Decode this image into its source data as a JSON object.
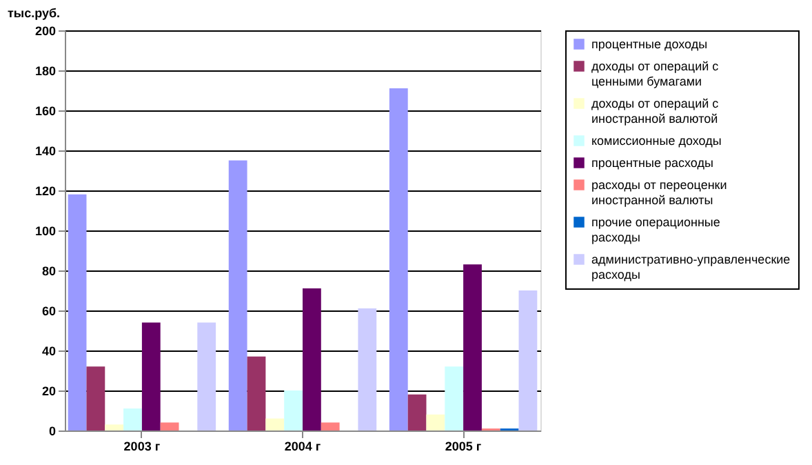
{
  "chart_data": {
    "type": "bar",
    "ylabel": "тыс.руб.",
    "categories": [
      "2003 г",
      "2004 г",
      "2005 г"
    ],
    "series": [
      {
        "name": "процентные доходы",
        "color": "#9999ff",
        "values": [
          118,
          135,
          171
        ]
      },
      {
        "name": "доходы от операций с ценными бумагами",
        "color": "#993366",
        "values": [
          32,
          37,
          18
        ]
      },
      {
        "name": "доходы от операций с иностранной валютой",
        "color": "#ffffcc",
        "values": [
          3,
          6,
          8
        ]
      },
      {
        "name": "комиссионные доходы",
        "color": "#ccffff",
        "values": [
          11,
          20,
          32
        ]
      },
      {
        "name": "процентные расходы",
        "color": "#660066",
        "values": [
          54,
          71,
          83
        ]
      },
      {
        "name": "расходы от переоценки иностранной валюты",
        "color": "#ff8080",
        "values": [
          4,
          4,
          1
        ]
      },
      {
        "name": "прочие операционные расходы",
        "color": "#0066cc",
        "values": [
          0,
          0,
          1
        ]
      },
      {
        "name": "административно-управленческие расходы",
        "color": "#ccccff",
        "values": [
          54,
          61,
          70
        ]
      }
    ],
    "ylim": [
      0,
      200
    ],
    "yticks": [
      0,
      20,
      40,
      60,
      80,
      100,
      120,
      140,
      160,
      180,
      200
    ],
    "grid": "y",
    "legend": "right"
  }
}
